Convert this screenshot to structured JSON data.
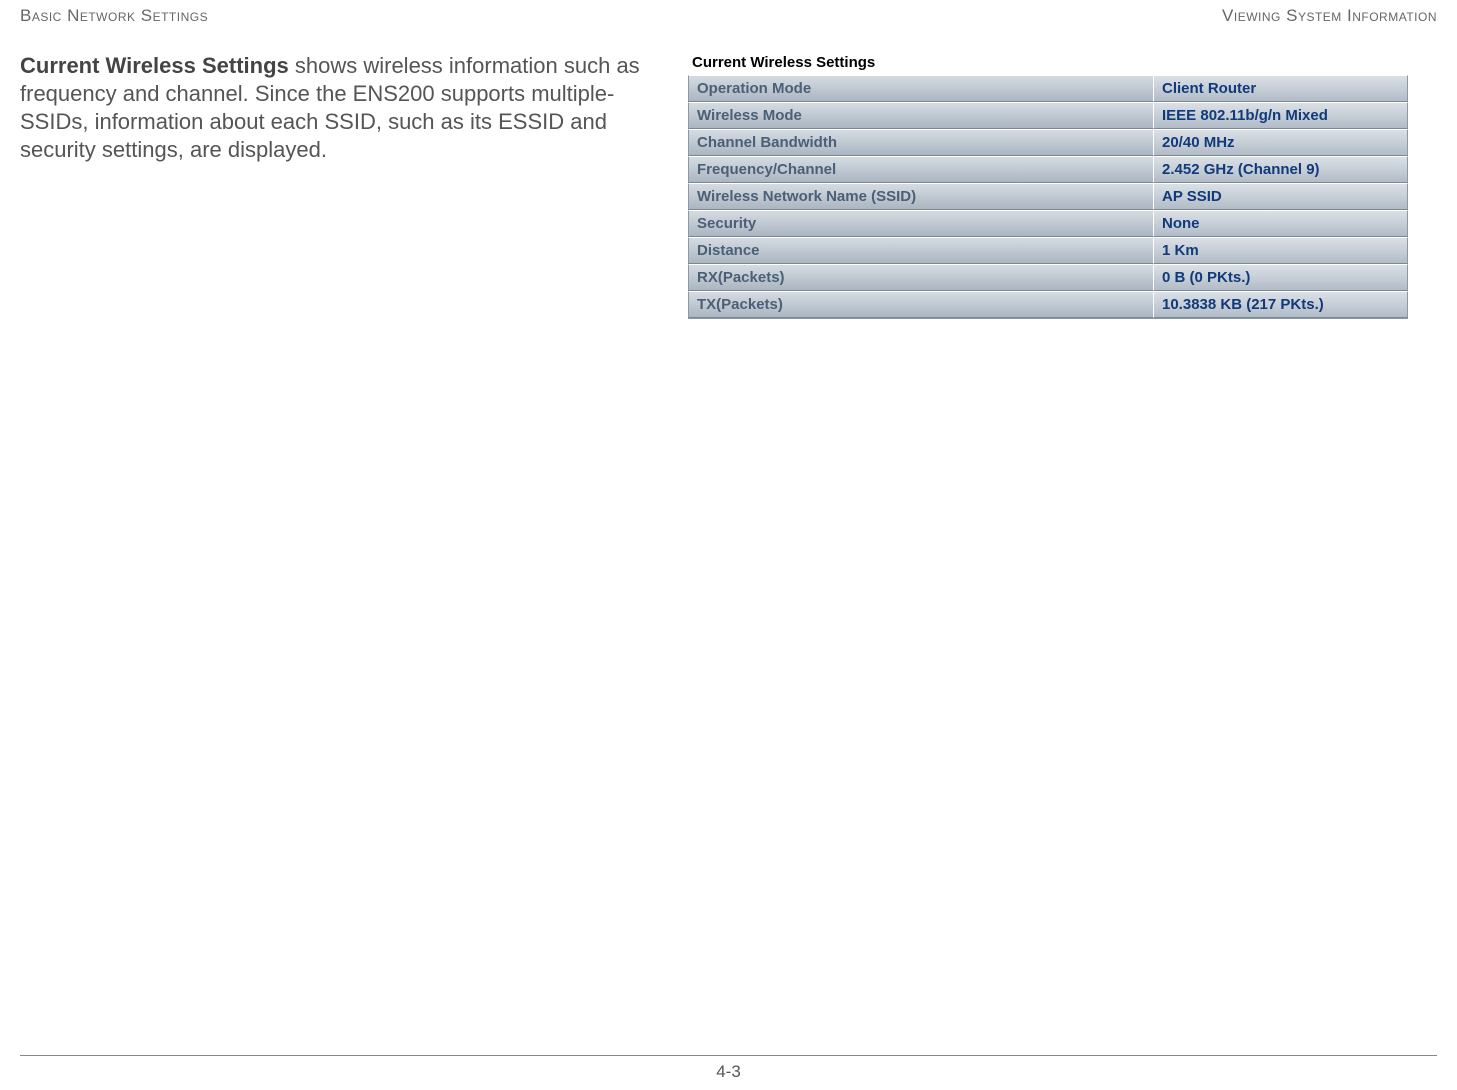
{
  "header": {
    "left": "Basic Network Settings",
    "right": "Viewing System Information"
  },
  "body": {
    "bold_lead": "Current Wireless Settings",
    "paragraph_tail": "  shows wireless information such as frequency and channel. Since the ENS200 supports multiple-SSIDs, information about each SSID, such as its ESSID and security settings, are displayed."
  },
  "figure": {
    "title": "Current Wireless Settings",
    "row_bg_gradient_top": "#d5dbe1",
    "row_bg_gradient_bottom": "#abb6c2",
    "label_color": "#4b5f79",
    "value_color": "#103a7a",
    "rows": [
      {
        "label": "Operation Mode",
        "value": "Client Router"
      },
      {
        "label": "Wireless Mode",
        "value": "IEEE 802.11b/g/n Mixed"
      },
      {
        "label": "Channel Bandwidth",
        "value": "20/40 MHz"
      },
      {
        "label": "Frequency/Channel",
        "value": "2.452 GHz (Channel 9)"
      },
      {
        "label": "Wireless Network Name (SSID)",
        "value": "AP SSID"
      },
      {
        "label": "Security",
        "value": "None"
      },
      {
        "label": "Distance",
        "value": "1 Km"
      },
      {
        "label": "RX(Packets)",
        "value": "0 B (0 PKts.)"
      },
      {
        "label": "TX(Packets)",
        "value": "10.3838 KB (217 PKts.)"
      }
    ]
  },
  "page_number": "4-3"
}
